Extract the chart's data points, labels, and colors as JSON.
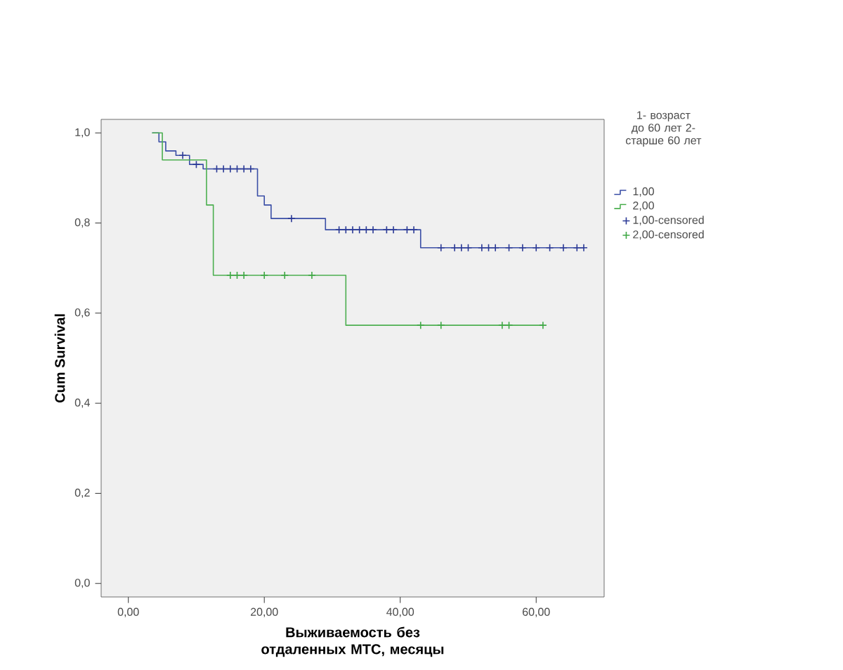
{
  "chart_data": {
    "type": "step",
    "xlabel": "Выживаемость без отдаленных МТС, месяцы",
    "ylabel": "Cum Survival",
    "legend_title": "1- возраст до 60 лет 2- старше 60 лет",
    "legend": "right",
    "xlim": [
      -4,
      70
    ],
    "ylim": [
      -0.03,
      1.03
    ],
    "xticks": [
      {
        "value": 0,
        "label": "0,00"
      },
      {
        "value": 20,
        "label": "20,00"
      },
      {
        "value": 40,
        "label": "40,00"
      },
      {
        "value": 60,
        "label": "60,00"
      }
    ],
    "yticks": [
      {
        "value": 0,
        "label": "0,0"
      },
      {
        "value": 0.2,
        "label": "0,2"
      },
      {
        "value": 0.4,
        "label": "0,4"
      },
      {
        "value": 0.6,
        "label": "0,6"
      },
      {
        "value": 0.8,
        "label": "0,8"
      },
      {
        "value": 1.0,
        "label": "1,0"
      }
    ],
    "series": [
      {
        "name": "1,00",
        "color": "#3a4ea6",
        "x": [
          3.5,
          4.5,
          5.5,
          7,
          9,
          11,
          19,
          20,
          21,
          29,
          43,
          67
        ],
        "values": [
          1.0,
          0.98,
          0.96,
          0.95,
          0.93,
          0.92,
          0.86,
          0.84,
          0.81,
          0.785,
          0.745,
          0.745
        ]
      },
      {
        "name": "2,00",
        "color": "#4caf50",
        "x": [
          3.5,
          5,
          11.5,
          12.5,
          32,
          61
        ],
        "values": [
          1.0,
          0.94,
          0.84,
          0.684,
          0.573,
          0.573
        ]
      },
      {
        "name": "1,00-censored",
        "type": "scatter",
        "marker": "cross",
        "color": "#2b3a96",
        "x": [
          8,
          10,
          13,
          14,
          15,
          16,
          17,
          18,
          24,
          31,
          32,
          33,
          34,
          35,
          36,
          38,
          39,
          41,
          42,
          46,
          48,
          49,
          50,
          52,
          53,
          54,
          56,
          58,
          60,
          62,
          64,
          66,
          67
        ],
        "values": [
          0.95,
          0.93,
          0.92,
          0.92,
          0.92,
          0.92,
          0.92,
          0.92,
          0.81,
          0.785,
          0.785,
          0.785,
          0.785,
          0.785,
          0.785,
          0.785,
          0.785,
          0.785,
          0.785,
          0.745,
          0.745,
          0.745,
          0.745,
          0.745,
          0.745,
          0.745,
          0.745,
          0.745,
          0.745,
          0.745,
          0.745,
          0.745,
          0.745
        ]
      },
      {
        "name": "2,00-censored",
        "type": "scatter",
        "marker": "cross",
        "color": "#3fa845",
        "x": [
          15,
          16,
          17,
          20,
          23,
          27,
          43,
          46,
          55,
          56,
          61
        ],
        "values": [
          0.684,
          0.684,
          0.684,
          0.684,
          0.684,
          0.684,
          0.573,
          0.573,
          0.573,
          0.573,
          0.573
        ]
      }
    ]
  }
}
